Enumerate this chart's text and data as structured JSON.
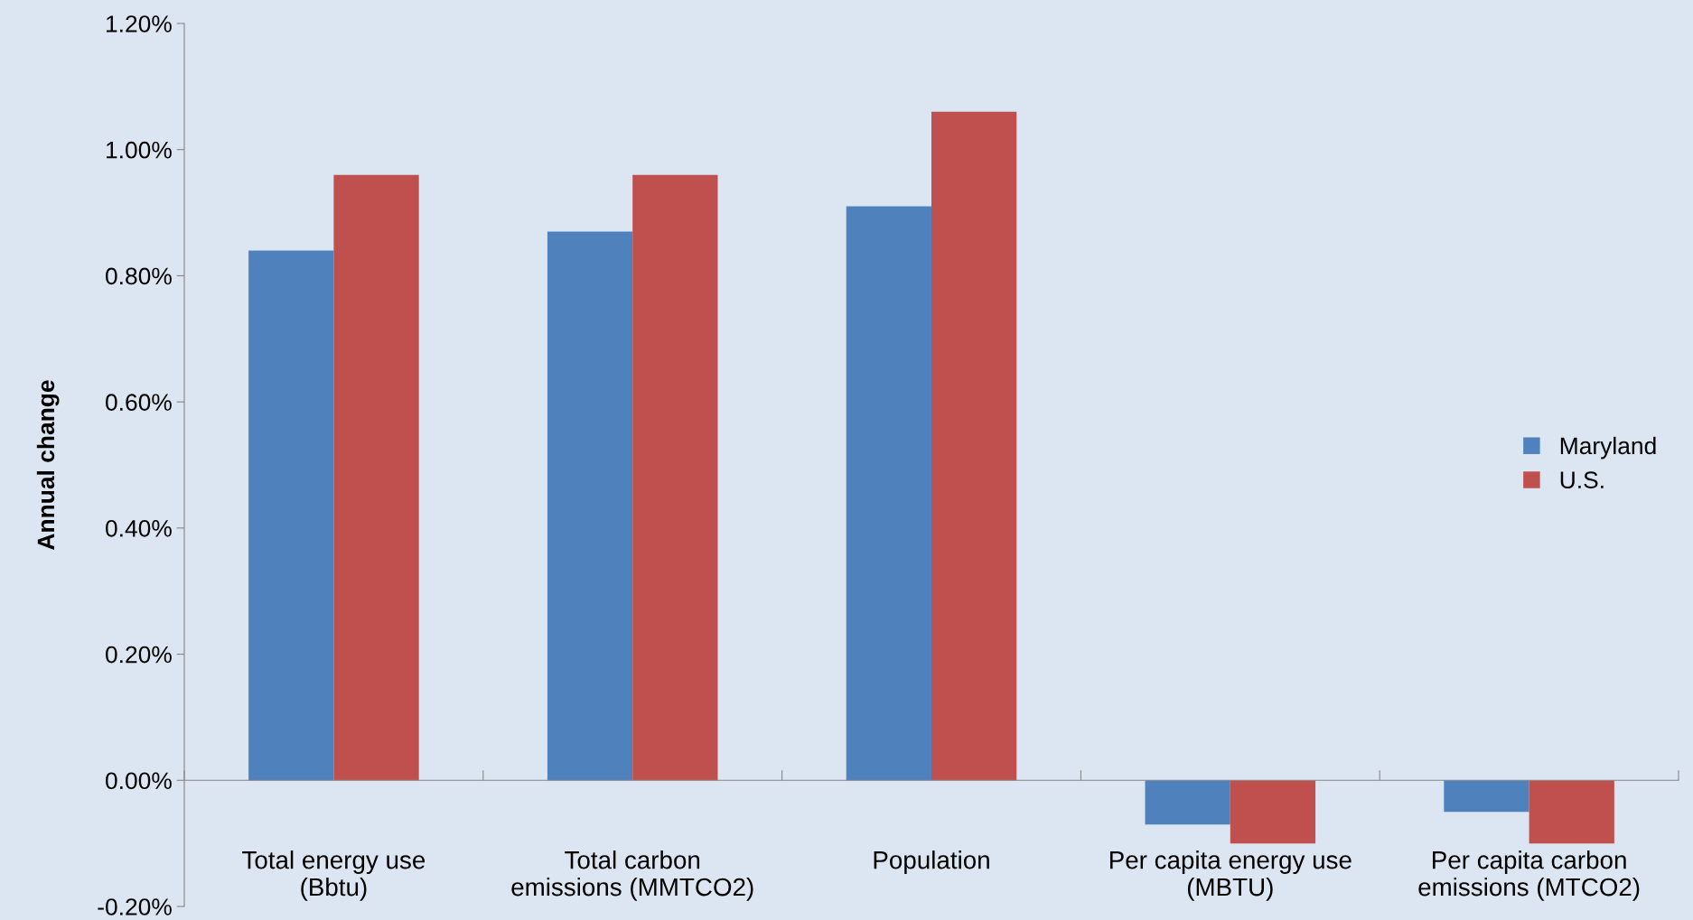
{
  "chart_data": {
    "type": "bar",
    "ylabel": "Annual change",
    "categories": [
      "Total energy use\n(Bbtu)",
      "Total carbon\nemissions (MMTCO2)",
      "Population",
      "Per capita energy use\n(MBTU)",
      "Per capita carbon\nemissions (MTCO2)"
    ],
    "series": [
      {
        "name": "Maryland",
        "color": "#4f81bd",
        "values": [
          0.84,
          0.87,
          0.91,
          -0.07,
          -0.05
        ]
      },
      {
        "name": "U.S.",
        "color": "#c0504d",
        "values": [
          0.96,
          0.96,
          1.06,
          -0.1,
          -0.1
        ]
      }
    ],
    "ylim": [
      -0.2,
      1.2
    ],
    "yticks": [
      {
        "value": -0.2,
        "label": "-0.20%"
      },
      {
        "value": 0,
        "label": "0.00%"
      },
      {
        "value": 0.2,
        "label": "0.20%"
      },
      {
        "value": 0.4,
        "label": "0.40%"
      },
      {
        "value": 0.6,
        "label": "0.60%"
      },
      {
        "value": 0.8,
        "label": "0.80%"
      },
      {
        "value": 1.0,
        "label": "1.00%"
      },
      {
        "value": 1.2,
        "label": "1.20%"
      }
    ],
    "legend": "right"
  }
}
